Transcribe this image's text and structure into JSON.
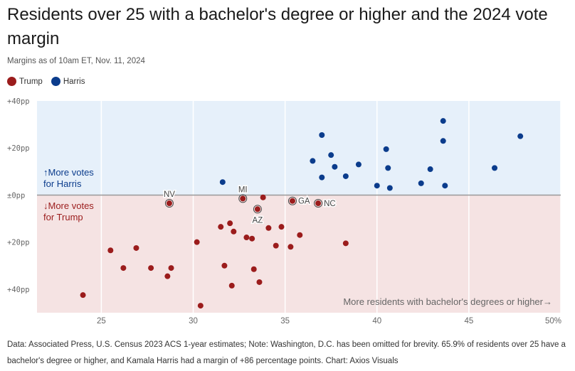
{
  "header": {
    "title": "Residents over 25 with a bachelor's degree or higher and the 2024 vote margin",
    "subtitle": "Margins as of 10am ET, Nov. 11, 2024"
  },
  "legend": [
    {
      "label": "Trump",
      "color": "#9b1c1c"
    },
    {
      "label": "Harris",
      "color": "#0b3c8c"
    }
  ],
  "footer": {
    "note": "Data: Associated Press, U.S. Census 2023 ACS 1-year estimates; Note: Washington, D.C. has been omitted for brevity. 65.9% of residents over 25 have a bachelor's degree or higher, and Kamala Harris had a margin of +86 percentage points. Chart: Axios Visuals"
  },
  "chart_data": {
    "type": "scatter",
    "title": "Residents over 25 with a bachelor's degree or higher and the 2024 vote margin",
    "xlabel": "More residents with bachelor's degrees or higher→",
    "ylabel": "",
    "xlim": [
      21.5,
      50
    ],
    "ylim": [
      -50,
      40
    ],
    "x_ticks": [
      25,
      30,
      35,
      40,
      45
    ],
    "x_tick_labels": [
      "25",
      "30",
      "35",
      "40",
      "45"
    ],
    "x_end_label": "50%",
    "y_ticks": [
      40,
      20,
      0,
      -20,
      -40
    ],
    "y_tick_labels": [
      "+40pp",
      "+20pp",
      "±0pp",
      "+20pp",
      "+40pp"
    ],
    "regions": {
      "harris": {
        "label_line1": "↑More votes",
        "label_line2": "for Harris",
        "color": "#e6f0fa",
        "text_color": "#0b3c8c"
      },
      "trump": {
        "label_line1": "↓More votes",
        "label_line2": "for Trump",
        "color": "#f5e3e3",
        "text_color": "#9b1c1c"
      }
    },
    "colors": {
      "trump": "#9b1c1c",
      "harris": "#0b3c8c",
      "baseline": "#999999"
    },
    "series": [
      {
        "name": "Harris",
        "points": [
          {
            "x": 31.6,
            "y": 5.5
          },
          {
            "x": 36.5,
            "y": 14.5
          },
          {
            "x": 37.0,
            "y": 25.5
          },
          {
            "x": 37.0,
            "y": 7.5
          },
          {
            "x": 37.5,
            "y": 17.0
          },
          {
            "x": 37.7,
            "y": 12.0
          },
          {
            "x": 38.3,
            "y": 8.0
          },
          {
            "x": 39.0,
            "y": 13.0
          },
          {
            "x": 40.0,
            "y": 4.0
          },
          {
            "x": 40.5,
            "y": 19.5
          },
          {
            "x": 40.6,
            "y": 11.5
          },
          {
            "x": 40.7,
            "y": 3.0
          },
          {
            "x": 42.4,
            "y": 5.0
          },
          {
            "x": 42.9,
            "y": 11.0
          },
          {
            "x": 43.6,
            "y": 31.5
          },
          {
            "x": 43.6,
            "y": 23.0
          },
          {
            "x": 43.7,
            "y": 4.0
          },
          {
            "x": 46.4,
            "y": 11.5
          },
          {
            "x": 47.8,
            "y": 25.0
          }
        ]
      },
      {
        "name": "Trump",
        "points": [
          {
            "x": 24.0,
            "y": -42.5
          },
          {
            "x": 25.5,
            "y": -23.5
          },
          {
            "x": 26.2,
            "y": -31.0
          },
          {
            "x": 26.9,
            "y": -22.5
          },
          {
            "x": 27.7,
            "y": -31.0
          },
          {
            "x": 28.6,
            "y": -34.5
          },
          {
            "x": 28.7,
            "y": -3.5
          },
          {
            "x": 28.8,
            "y": -31.0
          },
          {
            "x": 30.2,
            "y": -20.0
          },
          {
            "x": 30.4,
            "y": -47.0
          },
          {
            "x": 31.5,
            "y": -13.5
          },
          {
            "x": 31.7,
            "y": -30.0
          },
          {
            "x": 32.0,
            "y": -12.0
          },
          {
            "x": 32.1,
            "y": -38.5
          },
          {
            "x": 32.2,
            "y": -15.5
          },
          {
            "x": 32.7,
            "y": -1.5
          },
          {
            "x": 32.9,
            "y": -18.0
          },
          {
            "x": 33.2,
            "y": -18.5
          },
          {
            "x": 33.3,
            "y": -31.5
          },
          {
            "x": 33.5,
            "y": -6.0
          },
          {
            "x": 33.6,
            "y": -37.0
          },
          {
            "x": 33.8,
            "y": -1.0
          },
          {
            "x": 34.1,
            "y": -14.0
          },
          {
            "x": 34.5,
            "y": -21.5
          },
          {
            "x": 34.8,
            "y": -13.5
          },
          {
            "x": 35.3,
            "y": -22.0
          },
          {
            "x": 35.4,
            "y": -2.5
          },
          {
            "x": 35.8,
            "y": -17.0
          },
          {
            "x": 36.8,
            "y": -3.5
          },
          {
            "x": 38.3,
            "y": -20.5
          }
        ]
      }
    ],
    "annotations": [
      {
        "label": "NV",
        "x": 28.7,
        "y": -3.5,
        "pos": "above"
      },
      {
        "label": "MI",
        "x": 32.7,
        "y": -1.5,
        "pos": "above"
      },
      {
        "label": "AZ",
        "x": 33.5,
        "y": -6.0,
        "pos": "below"
      },
      {
        "label": "GA",
        "x": 35.4,
        "y": -2.5,
        "pos": "right"
      },
      {
        "label": "NC",
        "x": 36.8,
        "y": -3.5,
        "pos": "right"
      }
    ]
  }
}
